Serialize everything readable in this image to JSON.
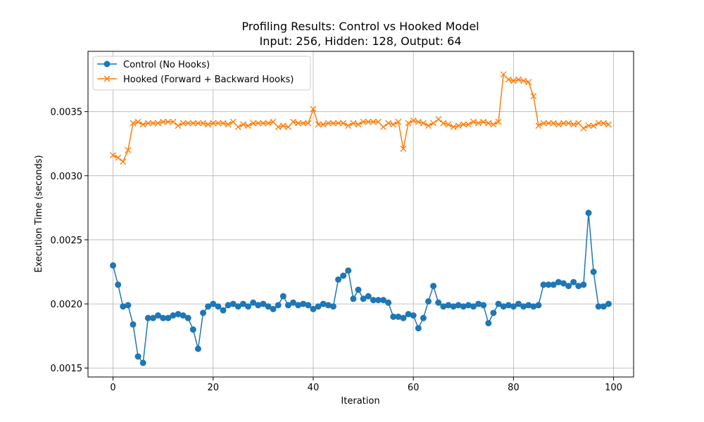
{
  "chart_data": {
    "type": "line",
    "title": "Profiling Results: Control vs Hooked Model",
    "subtitle": "Input: 256, Hidden: 128, Output: 64",
    "xlabel": "Iteration",
    "ylabel": "Execution Time (seconds)",
    "xlim": [
      -5,
      104
    ],
    "ylim": [
      0.00143,
      0.00397
    ],
    "xticks": [
      0,
      20,
      40,
      60,
      80,
      100
    ],
    "xtick_labels": [
      "0",
      "20",
      "40",
      "60",
      "80",
      "100"
    ],
    "yticks": [
      0.0015,
      0.002,
      0.0025,
      0.003,
      0.0035
    ],
    "ytick_labels": [
      "0.0015",
      "0.0020",
      "0.0025",
      "0.0030",
      "0.0035"
    ],
    "grid": true,
    "legend_position": "top-left",
    "series": [
      {
        "name": "Control (No Hooks)",
        "color": "#1f77b4",
        "marker": "circle",
        "x": [
          0,
          1,
          2,
          3,
          4,
          5,
          6,
          7,
          8,
          9,
          10,
          11,
          12,
          13,
          14,
          15,
          16,
          17,
          18,
          19,
          20,
          21,
          22,
          23,
          24,
          25,
          26,
          27,
          28,
          29,
          30,
          31,
          32,
          33,
          34,
          35,
          36,
          37,
          38,
          39,
          40,
          41,
          42,
          43,
          44,
          45,
          46,
          47,
          48,
          49,
          50,
          51,
          52,
          53,
          54,
          55,
          56,
          57,
          58,
          59,
          60,
          61,
          62,
          63,
          64,
          65,
          66,
          67,
          68,
          69,
          70,
          71,
          72,
          73,
          74,
          75,
          76,
          77,
          78,
          79,
          80,
          81,
          82,
          83,
          84,
          85,
          86,
          87,
          88,
          89,
          90,
          91,
          92,
          93,
          94,
          95,
          96,
          97,
          98,
          99
        ],
        "values": [
          0.0023,
          0.00215,
          0.00198,
          0.00199,
          0.00184,
          0.00159,
          0.00154,
          0.00189,
          0.00189,
          0.00191,
          0.00189,
          0.00189,
          0.00191,
          0.00192,
          0.00191,
          0.00189,
          0.0018,
          0.00165,
          0.00193,
          0.00198,
          0.002,
          0.00198,
          0.00195,
          0.00199,
          0.002,
          0.00198,
          0.002,
          0.00198,
          0.00201,
          0.00199,
          0.002,
          0.00198,
          0.00196,
          0.00199,
          0.00206,
          0.00199,
          0.00201,
          0.00199,
          0.002,
          0.00199,
          0.00196,
          0.00198,
          0.002,
          0.00199,
          0.00198,
          0.00219,
          0.00222,
          0.00226,
          0.00204,
          0.00211,
          0.00204,
          0.00206,
          0.00203,
          0.00203,
          0.00203,
          0.00201,
          0.0019,
          0.0019,
          0.00189,
          0.00192,
          0.00191,
          0.00181,
          0.00189,
          0.00202,
          0.00214,
          0.00201,
          0.00198,
          0.00199,
          0.00198,
          0.00199,
          0.00198,
          0.00199,
          0.00198,
          0.002,
          0.00199,
          0.00185,
          0.00193,
          0.002,
          0.00198,
          0.00199,
          0.00198,
          0.002,
          0.00198,
          0.00199,
          0.00198,
          0.00199,
          0.00215,
          0.00215,
          0.00215,
          0.00217,
          0.00216,
          0.00214,
          0.00217,
          0.00214,
          0.00215,
          0.00271,
          0.00225,
          0.00198,
          0.00198,
          0.002
        ]
      },
      {
        "name": "Hooked (Forward + Backward Hooks)",
        "color": "#ff7f0e",
        "marker": "x",
        "x": [
          0,
          1,
          2,
          3,
          4,
          5,
          6,
          7,
          8,
          9,
          10,
          11,
          12,
          13,
          14,
          15,
          16,
          17,
          18,
          19,
          20,
          21,
          22,
          23,
          24,
          25,
          26,
          27,
          28,
          29,
          30,
          31,
          32,
          33,
          34,
          35,
          36,
          37,
          38,
          39,
          40,
          41,
          42,
          43,
          44,
          45,
          46,
          47,
          48,
          49,
          50,
          51,
          52,
          53,
          54,
          55,
          56,
          57,
          58,
          59,
          60,
          61,
          62,
          63,
          64,
          65,
          66,
          67,
          68,
          69,
          70,
          71,
          72,
          73,
          74,
          75,
          76,
          77,
          78,
          79,
          80,
          81,
          82,
          83,
          84,
          85,
          86,
          87,
          88,
          89,
          90,
          91,
          92,
          93,
          94,
          95,
          96,
          97,
          98,
          99
        ],
        "values": [
          0.00316,
          0.00314,
          0.00311,
          0.0032,
          0.00341,
          0.00342,
          0.0034,
          0.00341,
          0.00341,
          0.00341,
          0.00342,
          0.00342,
          0.00342,
          0.00339,
          0.00341,
          0.00341,
          0.00341,
          0.00341,
          0.00341,
          0.0034,
          0.00341,
          0.00341,
          0.00341,
          0.0034,
          0.00342,
          0.00338,
          0.0034,
          0.00339,
          0.00341,
          0.00341,
          0.00341,
          0.00341,
          0.00342,
          0.00338,
          0.00339,
          0.00338,
          0.00342,
          0.00341,
          0.00341,
          0.00341,
          0.00352,
          0.0034,
          0.0034,
          0.00341,
          0.00341,
          0.00341,
          0.00341,
          0.00339,
          0.00341,
          0.0034,
          0.00342,
          0.00342,
          0.00342,
          0.00342,
          0.00338,
          0.00341,
          0.0034,
          0.00342,
          0.00321,
          0.00341,
          0.00343,
          0.00342,
          0.00341,
          0.00339,
          0.00341,
          0.00344,
          0.00341,
          0.0034,
          0.00338,
          0.00339,
          0.0034,
          0.0034,
          0.00342,
          0.00341,
          0.00342,
          0.00341,
          0.0034,
          0.00342,
          0.00379,
          0.00375,
          0.00374,
          0.00375,
          0.00374,
          0.00373,
          0.00362,
          0.00339,
          0.00341,
          0.00341,
          0.00341,
          0.0034,
          0.00341,
          0.00341,
          0.0034,
          0.00341,
          0.00337,
          0.00339,
          0.00339,
          0.00341,
          0.00341,
          0.0034
        ]
      }
    ]
  }
}
